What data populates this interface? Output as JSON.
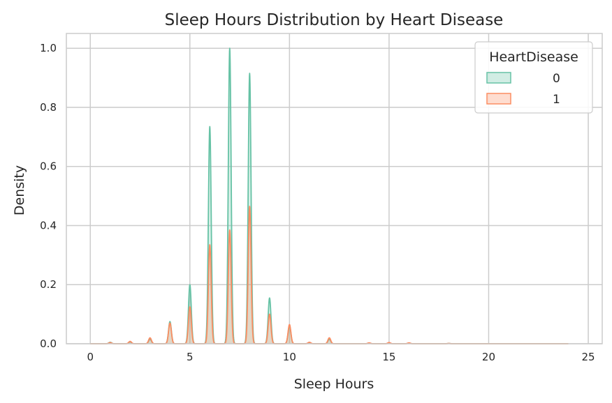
{
  "chart_data": {
    "type": "area",
    "title": "Sleep Hours Distribution by Heart Disease",
    "xlabel": "Sleep Hours",
    "ylabel": "Density",
    "xlim": [
      -1.2,
      25.7
    ],
    "ylim": [
      0,
      1.05
    ],
    "xticks": [
      "0",
      "5",
      "10",
      "15",
      "20",
      "25"
    ],
    "xtick_values": [
      0,
      5,
      10,
      15,
      20,
      25
    ],
    "yticks": [
      "0.0",
      "0.2",
      "0.4",
      "0.6",
      "0.8",
      "1.0"
    ],
    "ytick_values": [
      0,
      0.2,
      0.4,
      0.6,
      0.8,
      1.0
    ],
    "grid": true,
    "legend": {
      "title": "HeartDisease",
      "position": "top-right"
    },
    "peak_width": 0.07,
    "x_range": [
      0,
      24
    ],
    "series": [
      {
        "name": "0",
        "color": "#66c2a5",
        "peaks": [
          [
            1,
            0.005
          ],
          [
            2,
            0.006
          ],
          [
            3,
            0.015
          ],
          [
            4,
            0.075
          ],
          [
            5,
            0.2
          ],
          [
            6,
            0.735
          ],
          [
            7,
            1.0
          ],
          [
            8,
            0.915
          ],
          [
            9,
            0.155
          ],
          [
            10,
            0.06
          ],
          [
            11,
            0.004
          ],
          [
            12,
            0.015
          ],
          [
            14,
            0.002
          ],
          [
            15,
            0.002
          ],
          [
            16,
            0.002
          ],
          [
            18,
            0.001
          ]
        ]
      },
      {
        "name": "1",
        "color": "#fc8d62",
        "peaks": [
          [
            1,
            0.004
          ],
          [
            2,
            0.008
          ],
          [
            3,
            0.02
          ],
          [
            4,
            0.07
          ],
          [
            5,
            0.125
          ],
          [
            6,
            0.335
          ],
          [
            7,
            0.385
          ],
          [
            8,
            0.465
          ],
          [
            9,
            0.1
          ],
          [
            10,
            0.065
          ],
          [
            11,
            0.005
          ],
          [
            12,
            0.02
          ],
          [
            14,
            0.003
          ],
          [
            15,
            0.004
          ],
          [
            16,
            0.003
          ],
          [
            18,
            0.001
          ]
        ]
      }
    ]
  }
}
